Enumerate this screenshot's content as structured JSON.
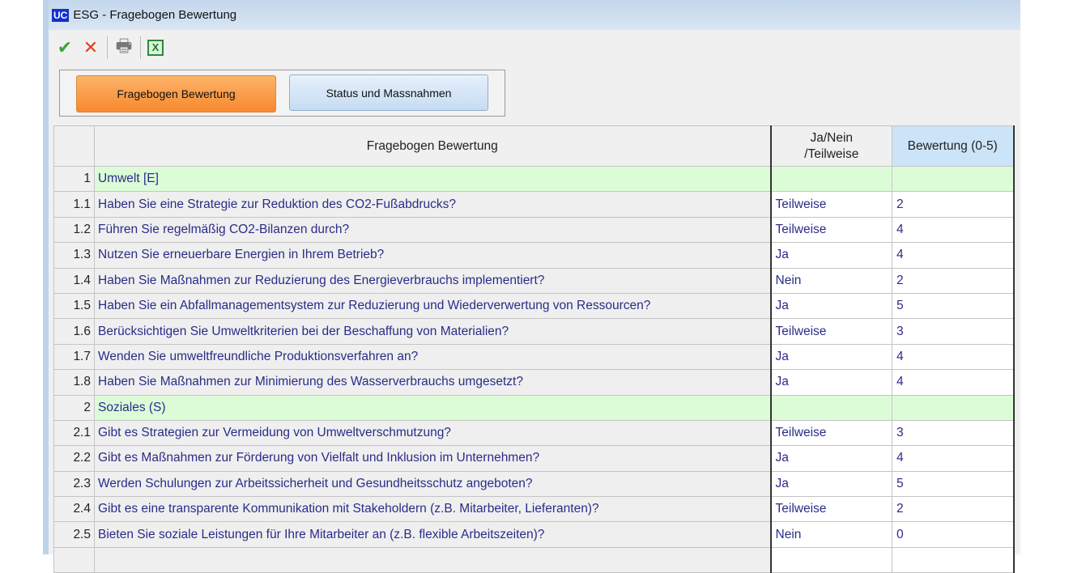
{
  "window": {
    "logo": "UC",
    "title": "ESG - Fragebogen Bewertung"
  },
  "toolbar": {
    "ok": "✔",
    "cancel": "✕",
    "print": "🖶",
    "excel": "X"
  },
  "tabs": [
    {
      "label": "Fragebogen Bewertung",
      "active": true
    },
    {
      "label": "Status und Massnahmen",
      "active": false
    }
  ],
  "table": {
    "headers": {
      "num": "",
      "question": "Fragebogen Bewertung",
      "answer_line1": "Ja/Nein",
      "answer_line2": "/Teilweise",
      "score": "Bewertung (0-5)"
    },
    "rows": [
      {
        "num": "1",
        "question": "Umwelt [E]",
        "answer": "",
        "score": "",
        "group": true
      },
      {
        "num": "1.1",
        "question": "Haben Sie eine Strategie zur Reduktion des CO2-Fußabdrucks?",
        "answer": "Teilweise",
        "score": "2"
      },
      {
        "num": "1.2",
        "question": "Führen Sie regelmäßig CO2-Bilanzen durch?",
        "answer": "Teilweise",
        "score": "4"
      },
      {
        "num": "1.3",
        "question": "Nutzen Sie erneuerbare Energien in Ihrem Betrieb?",
        "answer": "Ja",
        "score": "4"
      },
      {
        "num": "1.4",
        "question": "Haben Sie Maßnahmen zur Reduzierung des Energieverbrauchs implementiert?",
        "answer": "Nein",
        "score": "2"
      },
      {
        "num": "1.5",
        "question": "Haben Sie ein Abfallmanagementsystem zur Reduzierung und Wiederverwertung von Ressourcen?",
        "answer": "Ja",
        "score": "5"
      },
      {
        "num": "1.6",
        "question": "Berücksichtigen Sie Umweltkriterien bei der Beschaffung von Materialien?",
        "answer": "Teilweise",
        "score": "3"
      },
      {
        "num": "1.7",
        "question": "Wenden Sie umweltfreundliche Produktionsverfahren an?",
        "answer": "Ja",
        "score": "4"
      },
      {
        "num": "1.8",
        "question": "Haben Sie Maßnahmen zur Minimierung des Wasserverbrauchs umgesetzt?",
        "answer": "Ja",
        "score": "4"
      },
      {
        "num": "2",
        "question": "Soziales (S)",
        "answer": "",
        "score": "",
        "group": true
      },
      {
        "num": "2.1",
        "question": "Gibt es Strategien zur Vermeidung von Umweltverschmutzung?",
        "answer": "Teilweise",
        "score": "3"
      },
      {
        "num": "2.2",
        "question": "Gibt es Maßnahmen zur Förderung von Vielfalt und Inklusion im Unternehmen?",
        "answer": "Ja",
        "score": "4"
      },
      {
        "num": "2.3",
        "question": "Werden Schulungen zur Arbeitssicherheit und Gesundheitsschutz angeboten?",
        "answer": "Ja",
        "score": "5"
      },
      {
        "num": "2.4",
        "question": "Gibt es eine transparente Kommunikation mit Stakeholdern (z.B. Mitarbeiter, Lieferanten)?",
        "answer": "Teilweise",
        "score": "2"
      },
      {
        "num": "2.5",
        "question": "Bieten Sie soziale Leistungen für Ihre Mitarbeiter an (z.B. flexible Arbeitszeiten)?",
        "answer": "Nein",
        "score": "0"
      },
      {
        "num": "",
        "question": "",
        "answer": "",
        "score": ""
      }
    ]
  },
  "colors": {
    "accent_tab": "#f7892e",
    "group_row": "#dcfcd8",
    "text": "#2b2b8a",
    "score_header": "#cce4f7"
  }
}
